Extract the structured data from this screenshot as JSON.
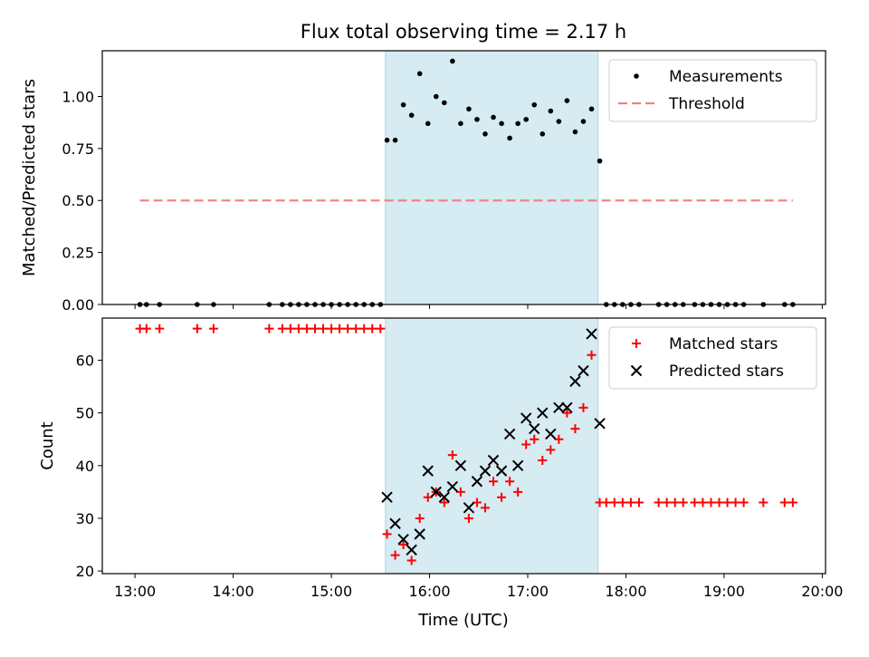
{
  "chart_data": {
    "title": "Flux total observing time = 2.17 h",
    "xlabel": "Time (UTC)",
    "x_ticks": [
      "13:00",
      "14:00",
      "15:00",
      "16:00",
      "17:00",
      "18:00",
      "19:00",
      "20:00"
    ],
    "x_range": [
      "12:40",
      "20:02"
    ],
    "highlight_span": {
      "start": "15:33",
      "end": "17:43",
      "color": "#add8e6"
    },
    "panels": [
      {
        "type": "scatter",
        "ylabel": "Matched/Predicted stars",
        "ylim": [
          0,
          1.22
        ],
        "y_ticks": [
          "0.00",
          "0.25",
          "0.50",
          "0.75",
          "1.00"
        ],
        "legend_position": "top-right",
        "series": [
          {
            "name": "Measurements",
            "marker": "dot",
            "color": "#000000",
            "points": [
              [
                "13:03",
                0
              ],
              [
                "13:07",
                0
              ],
              [
                "13:15",
                0
              ],
              [
                "13:38",
                0
              ],
              [
                "13:48",
                0
              ],
              [
                "14:22",
                0
              ],
              [
                "14:30",
                0
              ],
              [
                "14:35",
                0
              ],
              [
                "14:40",
                0
              ],
              [
                "14:45",
                0
              ],
              [
                "14:50",
                0
              ],
              [
                "14:55",
                0
              ],
              [
                "15:00",
                0
              ],
              [
                "15:05",
                0
              ],
              [
                "15:10",
                0
              ],
              [
                "15:15",
                0
              ],
              [
                "15:20",
                0
              ],
              [
                "15:25",
                0
              ],
              [
                "15:30",
                0
              ],
              [
                "15:34",
                0.79
              ],
              [
                "15:39",
                0.79
              ],
              [
                "15:44",
                0.96
              ],
              [
                "15:49",
                0.91
              ],
              [
                "15:54",
                1.11
              ],
              [
                "15:59",
                0.87
              ],
              [
                "16:04",
                1.0
              ],
              [
                "16:09",
                0.97
              ],
              [
                "16:14",
                1.17
              ],
              [
                "16:19",
                0.87
              ],
              [
                "16:24",
                0.94
              ],
              [
                "16:29",
                0.89
              ],
              [
                "16:34",
                0.82
              ],
              [
                "16:39",
                0.9
              ],
              [
                "16:44",
                0.87
              ],
              [
                "16:49",
                0.8
              ],
              [
                "16:54",
                0.87
              ],
              [
                "16:59",
                0.89
              ],
              [
                "17:04",
                0.96
              ],
              [
                "17:09",
                0.82
              ],
              [
                "17:14",
                0.93
              ],
              [
                "17:19",
                0.88
              ],
              [
                "17:24",
                0.98
              ],
              [
                "17:29",
                0.83
              ],
              [
                "17:34",
                0.88
              ],
              [
                "17:39",
                0.94
              ],
              [
                "17:44",
                0.69
              ],
              [
                "17:48",
                0
              ],
              [
                "17:53",
                0
              ],
              [
                "17:58",
                0
              ],
              [
                "18:03",
                0
              ],
              [
                "18:08",
                0
              ],
              [
                "18:20",
                0
              ],
              [
                "18:25",
                0
              ],
              [
                "18:30",
                0
              ],
              [
                "18:35",
                0
              ],
              [
                "18:42",
                0
              ],
              [
                "18:47",
                0
              ],
              [
                "18:52",
                0
              ],
              [
                "18:57",
                0
              ],
              [
                "19:02",
                0
              ],
              [
                "19:07",
                0
              ],
              [
                "19:12",
                0
              ],
              [
                "19:24",
                0
              ],
              [
                "19:37",
                0
              ],
              [
                "19:42",
                0
              ]
            ]
          },
          {
            "name": "Threshold",
            "type": "line",
            "style": "dashed",
            "color": "#f08080",
            "points": [
              [
                "13:03",
                0.5
              ],
              [
                "19:42",
                0.5
              ]
            ]
          }
        ]
      },
      {
        "type": "scatter",
        "ylabel": "Count",
        "ylim": [
          19.5,
          68
        ],
        "y_ticks": [
          "20",
          "30",
          "40",
          "50",
          "60"
        ],
        "legend_position": "top-right",
        "series": [
          {
            "name": "Matched stars",
            "marker": "plus",
            "color": "#ff0000",
            "points": [
              [
                "13:03",
                66
              ],
              [
                "13:07",
                66
              ],
              [
                "13:15",
                66
              ],
              [
                "13:38",
                66
              ],
              [
                "13:48",
                66
              ],
              [
                "14:22",
                66
              ],
              [
                "14:30",
                66
              ],
              [
                "14:35",
                66
              ],
              [
                "14:40",
                66
              ],
              [
                "14:45",
                66
              ],
              [
                "14:50",
                66
              ],
              [
                "14:55",
                66
              ],
              [
                "15:00",
                66
              ],
              [
                "15:05",
                66
              ],
              [
                "15:10",
                66
              ],
              [
                "15:15",
                66
              ],
              [
                "15:20",
                66
              ],
              [
                "15:25",
                66
              ],
              [
                "15:30",
                66
              ],
              [
                "15:34",
                27
              ],
              [
                "15:39",
                23
              ],
              [
                "15:44",
                25
              ],
              [
                "15:49",
                22
              ],
              [
                "15:54",
                30
              ],
              [
                "15:59",
                34
              ],
              [
                "16:04",
                35
              ],
              [
                "16:09",
                33
              ],
              [
                "16:14",
                42
              ],
              [
                "16:19",
                35
              ],
              [
                "16:24",
                30
              ],
              [
                "16:29",
                33
              ],
              [
                "16:34",
                32
              ],
              [
                "16:39",
                37
              ],
              [
                "16:44",
                34
              ],
              [
                "16:49",
                37
              ],
              [
                "16:54",
                35
              ],
              [
                "16:59",
                44
              ],
              [
                "17:04",
                45
              ],
              [
                "17:09",
                41
              ],
              [
                "17:14",
                43
              ],
              [
                "17:19",
                45
              ],
              [
                "17:24",
                50
              ],
              [
                "17:29",
                47
              ],
              [
                "17:34",
                51
              ],
              [
                "17:39",
                61
              ],
              [
                "17:44",
                33
              ],
              [
                "17:48",
                33
              ],
              [
                "17:53",
                33
              ],
              [
                "17:58",
                33
              ],
              [
                "18:03",
                33
              ],
              [
                "18:08",
                33
              ],
              [
                "18:20",
                33
              ],
              [
                "18:25",
                33
              ],
              [
                "18:30",
                33
              ],
              [
                "18:35",
                33
              ],
              [
                "18:42",
                33
              ],
              [
                "18:47",
                33
              ],
              [
                "18:52",
                33
              ],
              [
                "18:57",
                33
              ],
              [
                "19:02",
                33
              ],
              [
                "19:07",
                33
              ],
              [
                "19:12",
                33
              ],
              [
                "19:24",
                33
              ],
              [
                "19:37",
                33
              ],
              [
                "19:42",
                33
              ]
            ]
          },
          {
            "name": "Predicted stars",
            "marker": "x",
            "color": "#000000",
            "points": [
              [
                "15:34",
                34
              ],
              [
                "15:39",
                29
              ],
              [
                "15:44",
                26
              ],
              [
                "15:49",
                24
              ],
              [
                "15:54",
                27
              ],
              [
                "15:59",
                39
              ],
              [
                "16:04",
                35
              ],
              [
                "16:09",
                34
              ],
              [
                "16:14",
                36
              ],
              [
                "16:19",
                40
              ],
              [
                "16:24",
                32
              ],
              [
                "16:29",
                37
              ],
              [
                "16:34",
                39
              ],
              [
                "16:39",
                41
              ],
              [
                "16:44",
                39
              ],
              [
                "16:49",
                46
              ],
              [
                "16:54",
                40
              ],
              [
                "16:59",
                49
              ],
              [
                "17:04",
                47
              ],
              [
                "17:09",
                50
              ],
              [
                "17:14",
                46
              ],
              [
                "17:19",
                51
              ],
              [
                "17:24",
                51
              ],
              [
                "17:29",
                56
              ],
              [
                "17:34",
                58
              ],
              [
                "17:39",
                65
              ],
              [
                "17:44",
                48
              ]
            ]
          }
        ]
      }
    ]
  }
}
